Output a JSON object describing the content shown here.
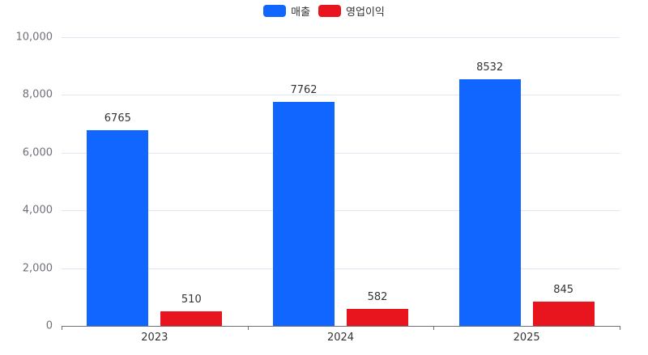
{
  "chart_data": {
    "type": "bar",
    "title": "",
    "xlabel": "",
    "ylabel": "",
    "categories": [
      "2023",
      "2024",
      "2025"
    ],
    "series": [
      {
        "name": "매출",
        "color": "#1166ff",
        "values": [
          6765,
          7762,
          8532
        ]
      },
      {
        "name": "영업이익",
        "color": "#e8141e",
        "values": [
          510,
          582,
          845
        ]
      }
    ],
    "ylim": [
      0,
      10000
    ],
    "yticks": [
      "0",
      "2,000",
      "4,000",
      "6,000",
      "8,000",
      "10,000"
    ],
    "grid": true,
    "legend_position": "top-center",
    "data_labels": true
  }
}
